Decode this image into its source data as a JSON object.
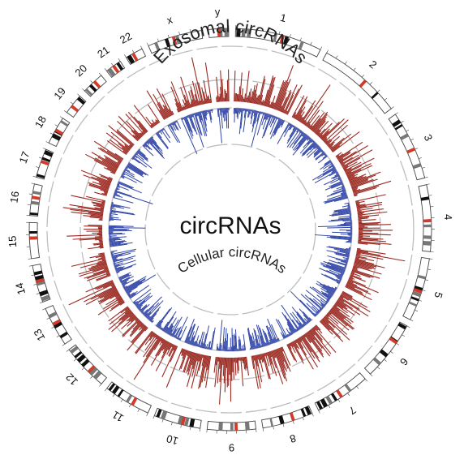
{
  "center_label": "circRNAs",
  "outer_track_label": "Exosomal circRNAs",
  "inner_track_label": "Cellular circRNAs",
  "colors": {
    "outer_track": "#9b2a22",
    "inner_track": "#3347a8",
    "ideogram_outline": "#444444",
    "guide_ring": "#bdbdbd",
    "centromere": "#d23a2a"
  },
  "chromosomes": [
    {
      "name": "1"
    },
    {
      "name": "2"
    },
    {
      "name": "3"
    },
    {
      "name": "4"
    },
    {
      "name": "5"
    },
    {
      "name": "6"
    },
    {
      "name": "7"
    },
    {
      "name": "8"
    },
    {
      "name": "9"
    },
    {
      "name": "10"
    },
    {
      "name": "11"
    },
    {
      "name": "12"
    },
    {
      "name": "13"
    },
    {
      "name": "14"
    },
    {
      "name": "15"
    },
    {
      "name": "16"
    },
    {
      "name": "17"
    },
    {
      "name": "18"
    },
    {
      "name": "19"
    },
    {
      "name": "20"
    },
    {
      "name": "21"
    },
    {
      "name": "22"
    },
    {
      "name": "x"
    },
    {
      "name": "y"
    }
  ]
}
